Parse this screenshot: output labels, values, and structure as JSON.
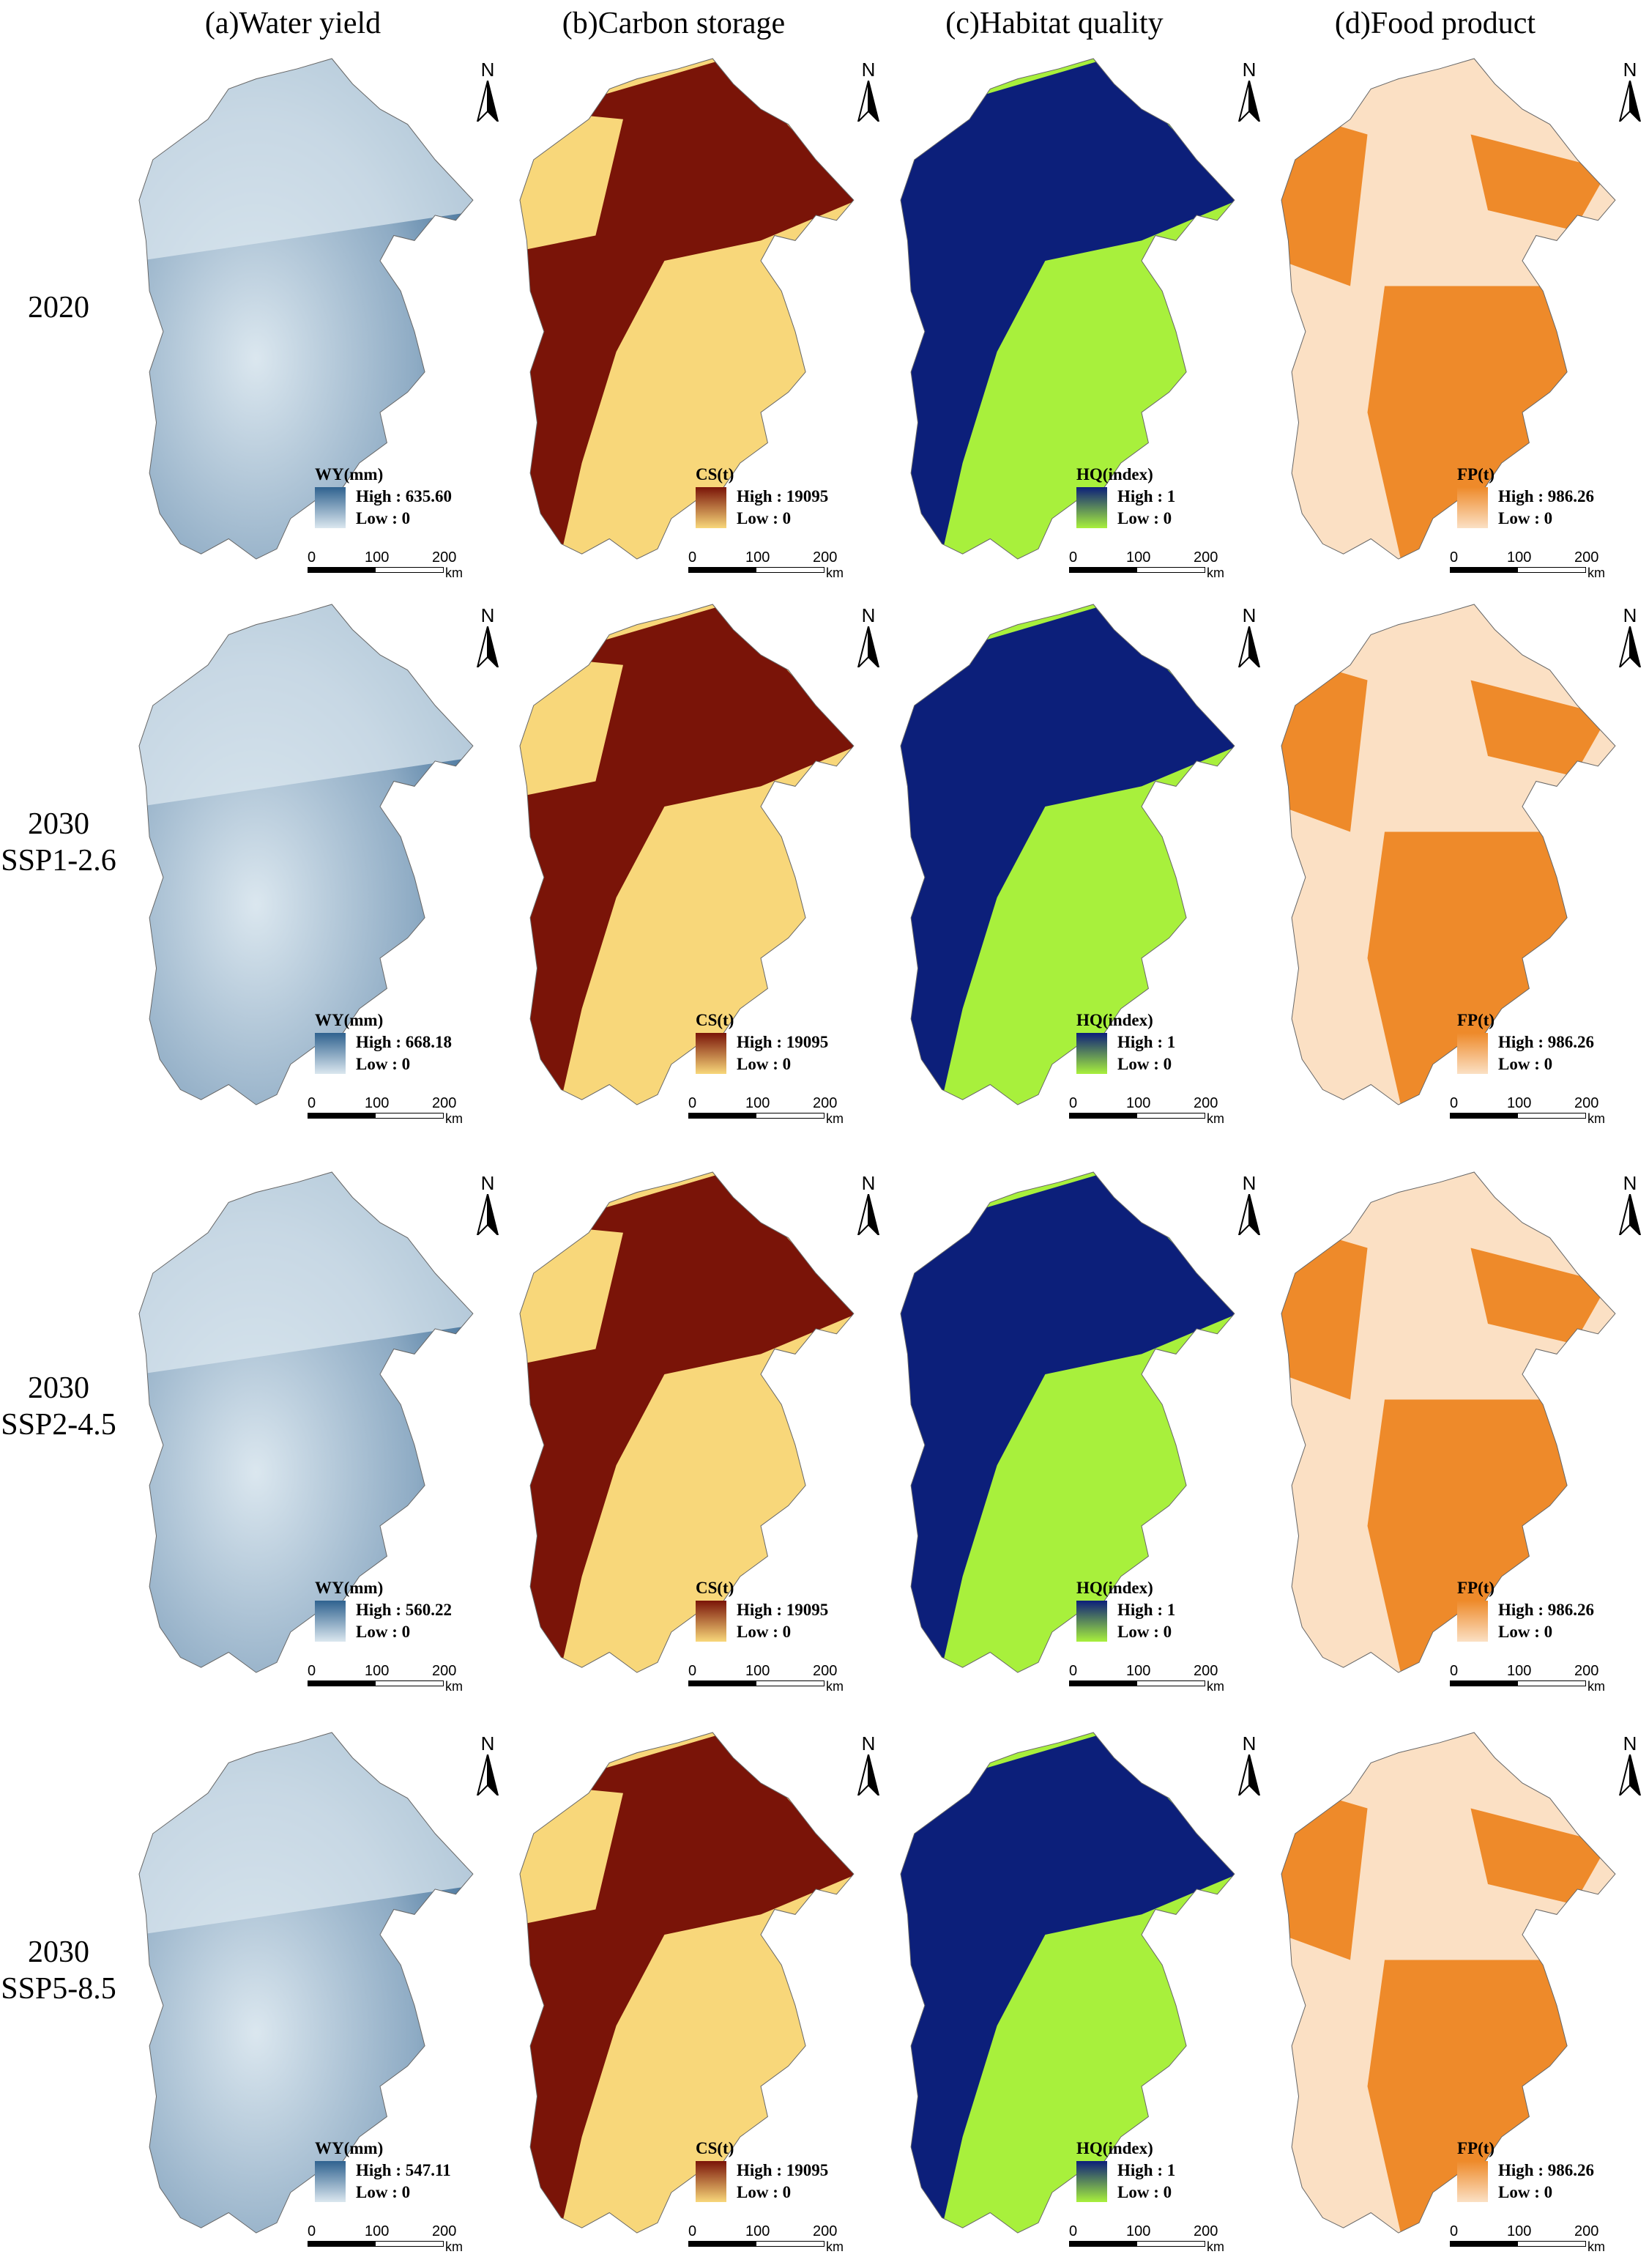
{
  "columns": [
    {
      "title": "(a)Water yield",
      "legend_title": "WY(mm)",
      "colors": [
        "#dbe7ef",
        "#2f628f"
      ]
    },
    {
      "title": "(b)Carbon storage",
      "legend_title": "CS(t)",
      "colors": [
        "#f8d77a",
        "#7a1408"
      ]
    },
    {
      "title": "(c)Habitat quality",
      "legend_title": "HQ(index)",
      "colors": [
        "#a8f03c",
        "#0c1f7a"
      ]
    },
    {
      "title": "(d)Food product",
      "legend_title": "FP(t)",
      "colors": [
        "#fbe0c4",
        "#ee8a2a"
      ]
    }
  ],
  "rows": [
    {
      "label": "2020",
      "highs": [
        "High : 635.60",
        "High : 19095",
        "High : 1",
        "High : 986.26"
      ]
    },
    {
      "label": "2030\nSSP1-2.6",
      "highs": [
        "High : 668.18",
        "High : 19095",
        "High : 1",
        "High : 986.26"
      ]
    },
    {
      "label": "2030\nSSP2-4.5",
      "highs": [
        "High : 560.22",
        "High : 19095",
        "High : 1",
        "High : 986.26"
      ]
    },
    {
      "label": "2030\nSSP5-8.5",
      "highs": [
        "High : 547.11",
        "High : 19095",
        "High : 1",
        "High : 986.26"
      ]
    }
  ],
  "legend_low": "Low : 0",
  "north_label": "N",
  "scale": {
    "ticks": [
      "0",
      "100",
      "200"
    ],
    "unit": "km"
  }
}
